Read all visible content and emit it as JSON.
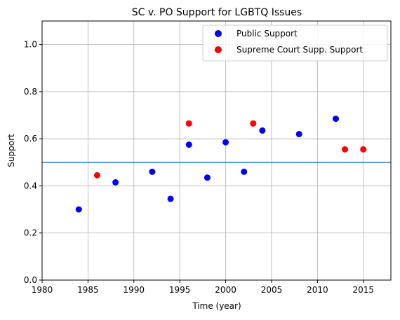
{
  "chart_data": {
    "type": "scatter",
    "title": "SC v. PO Support for LGBTQ Issues",
    "xlabel": "Time (year)",
    "ylabel": "Support",
    "xlim": [
      1980,
      2018
    ],
    "ylim": [
      0.0,
      1.1
    ],
    "xticks": [
      1980,
      1985,
      1990,
      1995,
      2000,
      2005,
      2010,
      2015
    ],
    "xtick_labels": [
      "1980",
      "1985",
      "1990",
      "1995",
      "2000",
      "2005",
      "2010",
      "2015"
    ],
    "yticks": [
      0.0,
      0.2,
      0.4,
      0.6,
      0.8,
      1.0
    ],
    "ytick_labels": [
      "0.0",
      "0.2",
      "0.4",
      "0.6",
      "0.8",
      "1.0"
    ],
    "grid": true,
    "legend_position": "top-right",
    "reference_line": {
      "y": 0.5,
      "color": "#1f77b4"
    },
    "series": [
      {
        "name": "Public Support",
        "color": "#0000ff",
        "points": [
          {
            "x": 1984,
            "y": 0.3
          },
          {
            "x": 1988,
            "y": 0.415
          },
          {
            "x": 1992,
            "y": 0.46
          },
          {
            "x": 1994,
            "y": 0.345
          },
          {
            "x": 1996,
            "y": 0.575
          },
          {
            "x": 1998,
            "y": 0.435
          },
          {
            "x": 2000,
            "y": 0.585
          },
          {
            "x": 2002,
            "y": 0.46
          },
          {
            "x": 2004,
            "y": 0.635
          },
          {
            "x": 2008,
            "y": 0.62
          },
          {
            "x": 2012,
            "y": 0.685
          }
        ]
      },
      {
        "name": "Supreme Court Supp. Support",
        "color": "#ff0000",
        "points": [
          {
            "x": 1986,
            "y": 0.445
          },
          {
            "x": 1996,
            "y": 0.665
          },
          {
            "x": 2003,
            "y": 0.665
          },
          {
            "x": 2013,
            "y": 0.555
          },
          {
            "x": 2015,
            "y": 0.555
          }
        ]
      }
    ]
  }
}
